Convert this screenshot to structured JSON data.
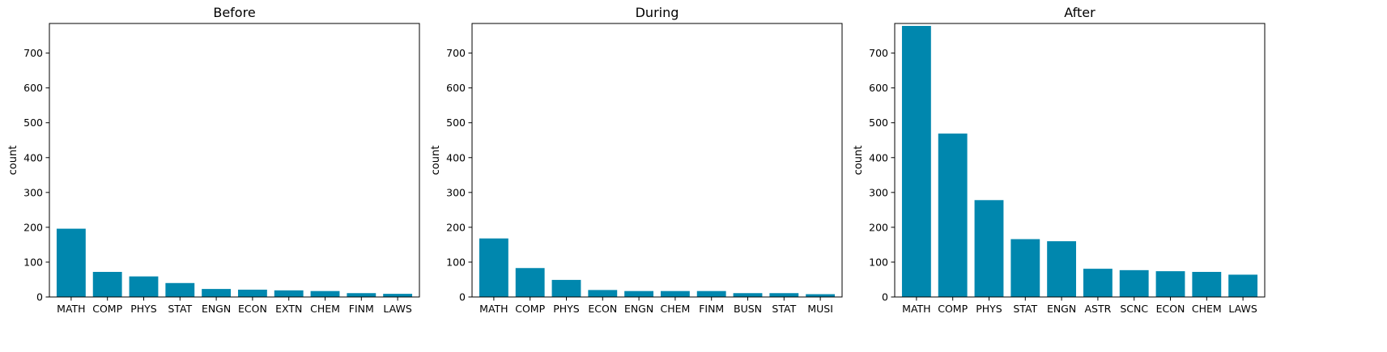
{
  "colors": {
    "bar": "#0087AE",
    "axis": "#000000",
    "background": "#ffffff"
  },
  "chart_data": [
    {
      "type": "bar",
      "title": "Before",
      "xlabel": "",
      "ylabel": "count",
      "ylim": [
        0,
        785
      ],
      "yticks": [
        0,
        100,
        200,
        300,
        400,
        500,
        600,
        700
      ],
      "grid": false,
      "categories": [
        "MATH",
        "COMP",
        "PHYS",
        "STAT",
        "ENGN",
        "ECON",
        "EXTN",
        "CHEM",
        "FINM",
        "LAWS"
      ],
      "values": [
        196,
        72,
        59,
        40,
        23,
        21,
        19,
        17,
        11,
        9
      ]
    },
    {
      "type": "bar",
      "title": "During",
      "xlabel": "",
      "ylabel": "count",
      "ylim": [
        0,
        785
      ],
      "yticks": [
        0,
        100,
        200,
        300,
        400,
        500,
        600,
        700
      ],
      "grid": false,
      "categories": [
        "MATH",
        "COMP",
        "PHYS",
        "ECON",
        "ENGN",
        "CHEM",
        "FINM",
        "BUSN",
        "STAT",
        "MUSI"
      ],
      "values": [
        168,
        83,
        49,
        20,
        17,
        17,
        17,
        11,
        11,
        8
      ]
    },
    {
      "type": "bar",
      "title": "After",
      "xlabel": "",
      "ylabel": "count",
      "ylim": [
        0,
        785
      ],
      "yticks": [
        0,
        100,
        200,
        300,
        400,
        500,
        600,
        700
      ],
      "grid": false,
      "categories": [
        "MATH",
        "COMP",
        "PHYS",
        "STAT",
        "ENGN",
        "ASTR",
        "SCNC",
        "ECON",
        "CHEM",
        "LAWS"
      ],
      "values": [
        778,
        469,
        278,
        166,
        160,
        81,
        77,
        74,
        72,
        64
      ]
    }
  ]
}
